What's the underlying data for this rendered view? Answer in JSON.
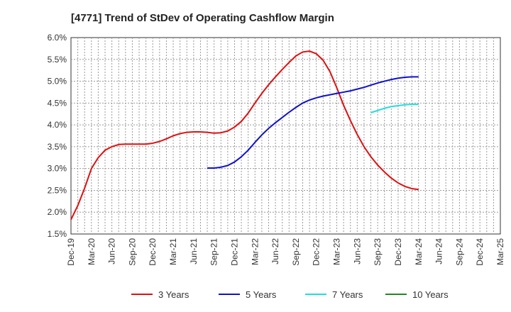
{
  "chart_data": {
    "type": "line",
    "title": "[4771]  Trend of StDev of Operating Cashflow Margin",
    "xlabel": "",
    "ylabel": "",
    "ylim": [
      1.5,
      6.0
    ],
    "y_ticks": [
      1.5,
      2.0,
      2.5,
      3.0,
      3.5,
      4.0,
      4.5,
      5.0,
      5.5,
      6.0
    ],
    "y_tick_labels": [
      "1.5%",
      "2.0%",
      "2.5%",
      "3.0%",
      "3.5%",
      "4.0%",
      "4.5%",
      "5.0%",
      "5.5%",
      "6.0%"
    ],
    "x_ticks": [
      "Dec-19",
      "Mar-20",
      "Jun-20",
      "Sep-20",
      "Dec-20",
      "Mar-21",
      "Jun-21",
      "Sep-21",
      "Dec-21",
      "Mar-22",
      "Jun-22",
      "Sep-22",
      "Dec-22",
      "Mar-23",
      "Jun-23",
      "Sep-23",
      "Dec-23",
      "Mar-24",
      "Jun-24",
      "Sep-24",
      "Dec-24",
      "Mar-25"
    ],
    "grid": true,
    "legend_position": "bottom",
    "series": [
      {
        "name": "3 Years",
        "color": "#dd1111",
        "points": [
          [
            "Dec-19",
            1.83
          ],
          [
            "Jan-20",
            2.15
          ],
          [
            "Feb-20",
            2.55
          ],
          [
            "Mar-20",
            3.0
          ],
          [
            "Apr-20",
            3.25
          ],
          [
            "May-20",
            3.42
          ],
          [
            "Jun-20",
            3.5
          ],
          [
            "Jul-20",
            3.55
          ],
          [
            "Aug-20",
            3.56
          ],
          [
            "Sep-20",
            3.56
          ],
          [
            "Oct-20",
            3.56
          ],
          [
            "Nov-20",
            3.56
          ],
          [
            "Dec-20",
            3.58
          ],
          [
            "Jan-21",
            3.62
          ],
          [
            "Feb-21",
            3.68
          ],
          [
            "Mar-21",
            3.75
          ],
          [
            "Apr-21",
            3.8
          ],
          [
            "May-21",
            3.83
          ],
          [
            "Jun-21",
            3.84
          ],
          [
            "Jul-21",
            3.84
          ],
          [
            "Aug-21",
            3.83
          ],
          [
            "Sep-21",
            3.81
          ],
          [
            "Oct-21",
            3.82
          ],
          [
            "Nov-21",
            3.86
          ],
          [
            "Dec-21",
            3.95
          ],
          [
            "Jan-22",
            4.08
          ],
          [
            "Feb-22",
            4.27
          ],
          [
            "Mar-22",
            4.5
          ],
          [
            "Apr-22",
            4.72
          ],
          [
            "May-22",
            4.92
          ],
          [
            "Jun-22",
            5.1
          ],
          [
            "Jul-22",
            5.27
          ],
          [
            "Aug-22",
            5.43
          ],
          [
            "Sep-22",
            5.58
          ],
          [
            "Oct-22",
            5.67
          ],
          [
            "Nov-22",
            5.69
          ],
          [
            "Dec-22",
            5.63
          ],
          [
            "Jan-23",
            5.48
          ],
          [
            "Feb-23",
            5.22
          ],
          [
            "Mar-23",
            4.85
          ],
          [
            "Apr-23",
            4.45
          ],
          [
            "May-23",
            4.1
          ],
          [
            "Jun-23",
            3.78
          ],
          [
            "Jul-23",
            3.5
          ],
          [
            "Aug-23",
            3.27
          ],
          [
            "Sep-23",
            3.08
          ],
          [
            "Oct-23",
            2.92
          ],
          [
            "Nov-23",
            2.78
          ],
          [
            "Dec-23",
            2.67
          ],
          [
            "Jan-24",
            2.59
          ],
          [
            "Feb-24",
            2.54
          ],
          [
            "Mar-24",
            2.52
          ]
        ]
      },
      {
        "name": "5 Years",
        "color": "#1111cc",
        "points": [
          [
            "Aug-21",
            3.01
          ],
          [
            "Sep-21",
            3.01
          ],
          [
            "Oct-21",
            3.03
          ],
          [
            "Nov-21",
            3.07
          ],
          [
            "Dec-21",
            3.15
          ],
          [
            "Jan-22",
            3.27
          ],
          [
            "Feb-22",
            3.42
          ],
          [
            "Mar-22",
            3.6
          ],
          [
            "Apr-22",
            3.77
          ],
          [
            "May-22",
            3.92
          ],
          [
            "Jun-22",
            4.05
          ],
          [
            "Jul-22",
            4.17
          ],
          [
            "Aug-22",
            4.29
          ],
          [
            "Sep-22",
            4.4
          ],
          [
            "Oct-22",
            4.5
          ],
          [
            "Nov-22",
            4.57
          ],
          [
            "Dec-22",
            4.62
          ],
          [
            "Jan-23",
            4.66
          ],
          [
            "Feb-23",
            4.69
          ],
          [
            "Mar-23",
            4.72
          ],
          [
            "Apr-23",
            4.75
          ],
          [
            "May-23",
            4.78
          ],
          [
            "Jun-23",
            4.82
          ],
          [
            "Jul-23",
            4.86
          ],
          [
            "Aug-23",
            4.91
          ],
          [
            "Sep-23",
            4.96
          ],
          [
            "Oct-23",
            5.0
          ],
          [
            "Nov-23",
            5.04
          ],
          [
            "Dec-23",
            5.07
          ],
          [
            "Jan-24",
            5.09
          ],
          [
            "Feb-24",
            5.1
          ],
          [
            "Mar-24",
            5.1
          ]
        ]
      },
      {
        "name": "7 Years",
        "color": "#22dddd",
        "points": [
          [
            "Aug-23",
            4.28
          ],
          [
            "Sep-23",
            4.33
          ],
          [
            "Oct-23",
            4.38
          ],
          [
            "Nov-23",
            4.42
          ],
          [
            "Dec-23",
            4.44
          ],
          [
            "Jan-24",
            4.46
          ],
          [
            "Feb-24",
            4.47
          ],
          [
            "Mar-24",
            4.47
          ]
        ]
      },
      {
        "name": "10 Years",
        "color": "#228822",
        "points": []
      }
    ]
  }
}
